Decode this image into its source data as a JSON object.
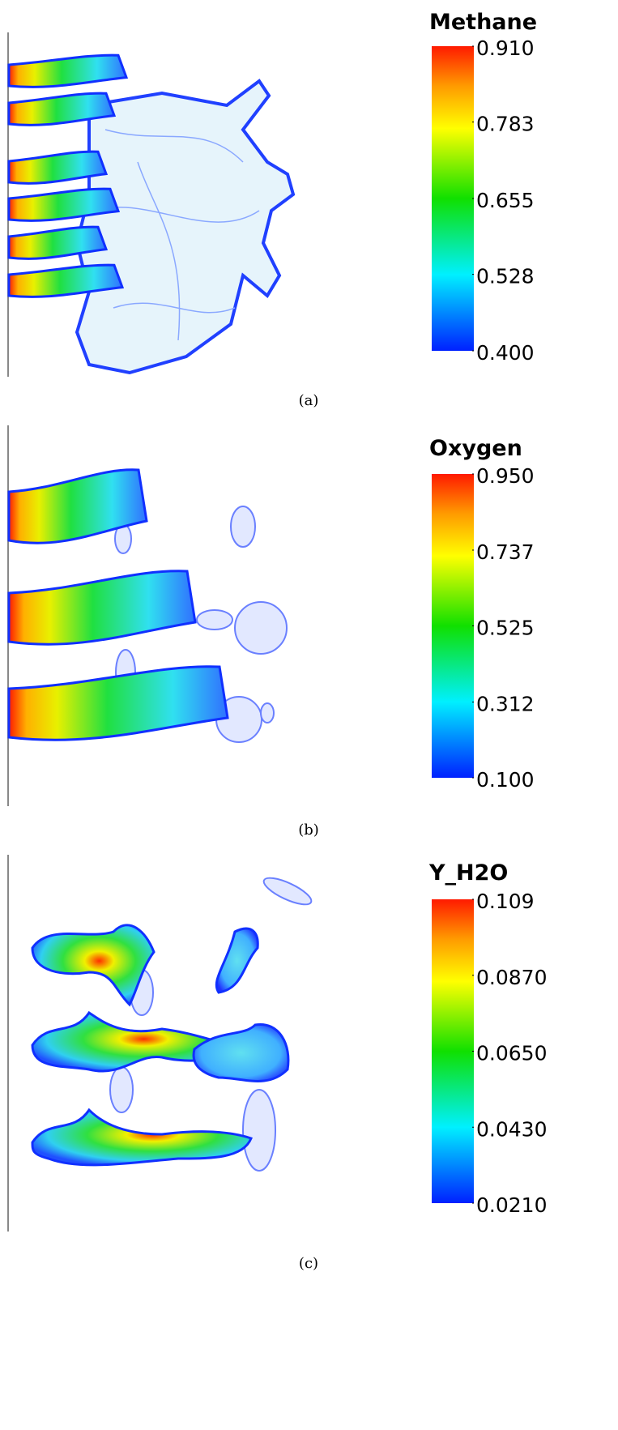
{
  "panels": [
    {
      "title": "Methane",
      "caption": "(a)",
      "colorbar": {
        "lim": [
          0.4,
          0.91
        ],
        "ticks": [
          {
            "value": 0.91,
            "label": "0.910"
          },
          0.783,
          0.655,
          0.528,
          {
            "value": 0.4,
            "label": "0.400"
          }
        ]
      }
    },
    {
      "title": "Oxygen",
      "caption": "(b)",
      "colorbar": {
        "lim": [
          0.1,
          0.95
        ],
        "ticks": [
          {
            "value": 0.95,
            "label": "0.950"
          },
          0.737,
          0.525,
          0.312,
          {
            "value": 0.1,
            "label": "0.100"
          }
        ]
      }
    },
    {
      "title": "Y_H2O",
      "caption": "(c)",
      "colorbar": {
        "lim": [
          0.021,
          0.109
        ],
        "ticks": [
          0.109,
          {
            "value": 0.087,
            "label": "0.0870"
          },
          {
            "value": 0.065,
            "label": "0.0650"
          },
          {
            "value": 0.043,
            "label": "0.0430"
          },
          {
            "value": 0.021,
            "label": "0.0210"
          }
        ]
      }
    }
  ]
}
